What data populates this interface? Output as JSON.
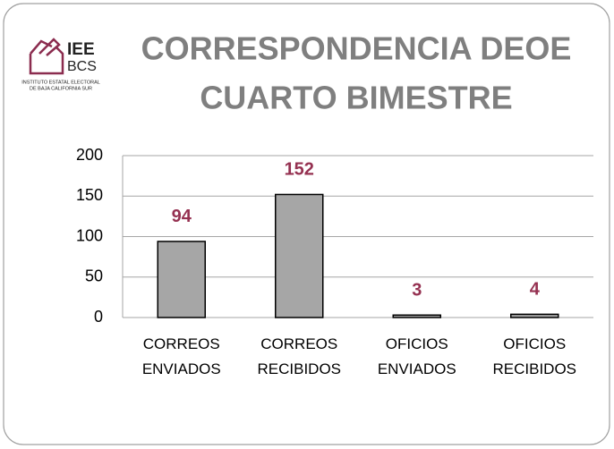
{
  "logo": {
    "name": "IEE",
    "sub": "BCS",
    "caption": [
      "INSTITUTO ESTATAL ELECTORAL",
      "DE BAJA CALIFORNIA SUR"
    ]
  },
  "chart_data": {
    "type": "bar",
    "title": [
      "CORRESPONDENCIA DEOE",
      "CUARTO BIMESTRE"
    ],
    "categories": [
      "CORREOS ENVIADOS",
      "CORREOS RECIBIDOS",
      "OFICIOS ENVIADOS",
      "OFICIOS RECIBIDOS"
    ],
    "values": [
      94,
      152,
      3,
      4
    ],
    "color": "#a6a6a6",
    "label_color": "#953151",
    "ylim": [
      0,
      200
    ],
    "yticks": [
      0,
      50,
      100,
      150,
      200
    ],
    "grid": true
  }
}
